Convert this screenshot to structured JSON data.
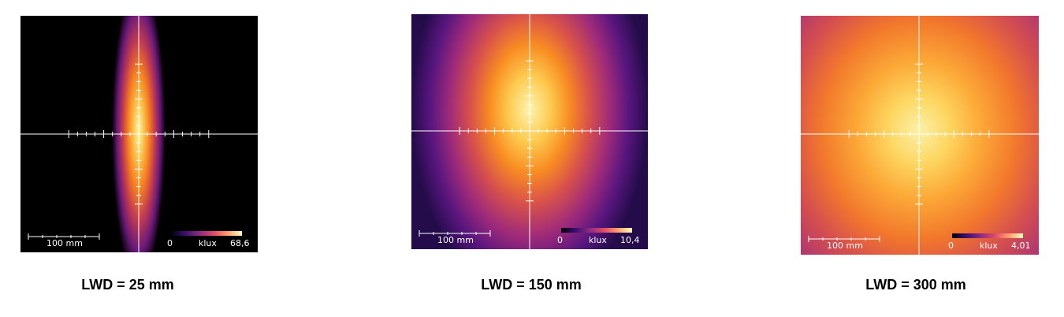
{
  "colormap": [
    "#000004",
    "#3b0f70",
    "#8c2981",
    "#de4968",
    "#fe9f6d",
    "#fcfdbf"
  ],
  "panels": [
    {
      "caption": "LWD = 25 mm",
      "scale_label": "100 mm",
      "cbar_min": "0",
      "cbar_unit": "klux",
      "cbar_max": "68,6"
    },
    {
      "caption": "LWD = 150 mm",
      "scale_label": "100 mm",
      "cbar_min": "0",
      "cbar_unit": "klux",
      "cbar_max": "10,4"
    },
    {
      "caption": "LWD = 300 mm",
      "scale_label": "100 mm",
      "cbar_min": "0",
      "cbar_unit": "klux",
      "cbar_max": "4,01"
    }
  ]
}
